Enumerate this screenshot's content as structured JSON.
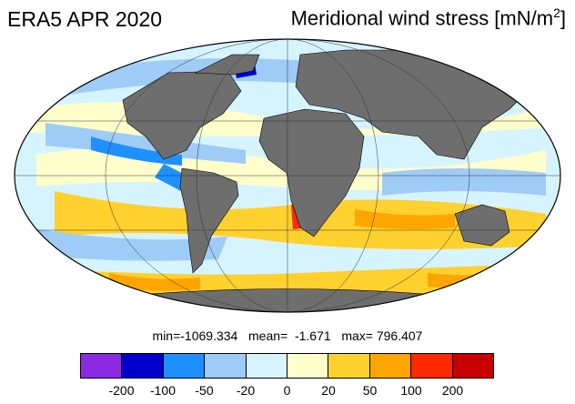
{
  "title": {
    "left": "ERA5 APR 2020",
    "right_main": "Meridional wind stress [mN/m",
    "right_sup": "2",
    "right_close": "]"
  },
  "stats": "min=-1069.334   mean=  -1.671   max= 796.407",
  "legend": {
    "colors": [
      "#8a2be2",
      "#0000cd",
      "#1e90ff",
      "#9fcbf7",
      "#d6f4ff",
      "#ffffcc",
      "#ffd12e",
      "#ffa500",
      "#ff2a00",
      "#c80000"
    ],
    "ticks": [
      "-200",
      "-100",
      "-50",
      "-20",
      "0",
      "20",
      "50",
      "100",
      "200"
    ]
  },
  "colors": {
    "land": "#6e6e6e",
    "ocean_base": "#d6f4ff"
  }
}
